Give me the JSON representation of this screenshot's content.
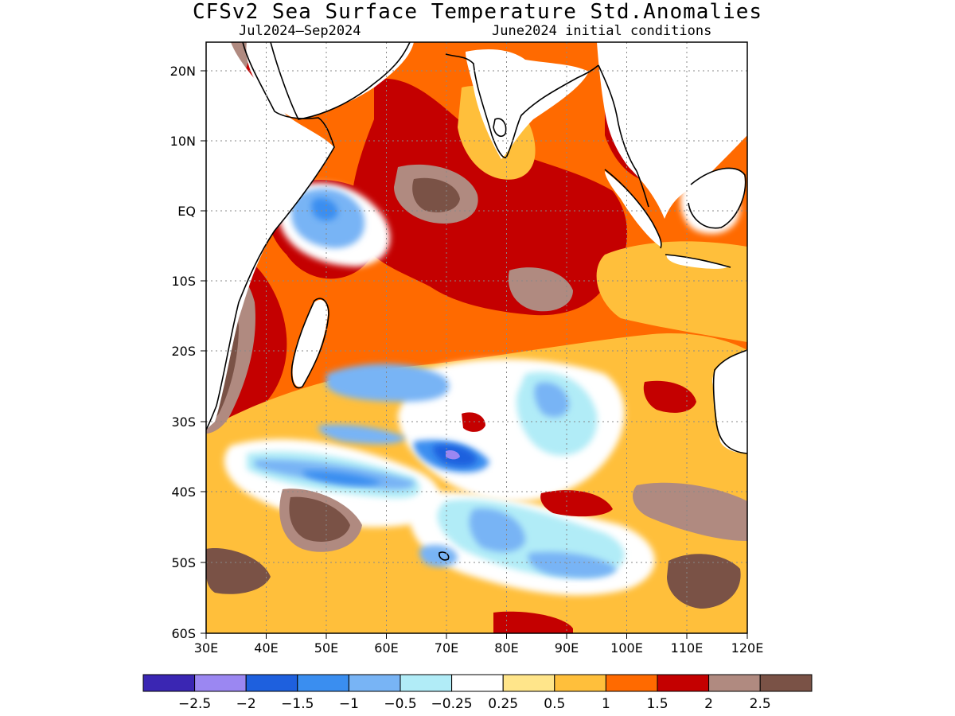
{
  "title": "CFSv2 Sea Surface Temperature Std.Anomalies",
  "subtitle_left": "Jul2024—Sep2024",
  "subtitle_right": "June2024 initial conditions",
  "axes": {
    "x_ticks": [
      "30E",
      "40E",
      "50E",
      "60E",
      "70E",
      "80E",
      "90E",
      "100E",
      "110E",
      "120E"
    ],
    "y_ticks": [
      "20N",
      "10N",
      "EQ",
      "10S",
      "20S",
      "30S",
      "40S",
      "50S",
      "60S"
    ]
  },
  "colorbar": {
    "labels": [
      "−2.5",
      "−2",
      "−1.5",
      "−1",
      "−0.5",
      "−0.25",
      "0.25",
      "0.5",
      "1",
      "1.5",
      "2",
      "2.5"
    ],
    "colors": [
      "#3a26b3",
      "#9b87f2",
      "#1e60de",
      "#3a8ef0",
      "#78b4f5",
      "#b1ecf7",
      "#ffffff",
      "#ffe58a",
      "#ffbf3b",
      "#ff6a00",
      "#c40000",
      "#b08a80",
      "#7a5246"
    ]
  },
  "palette": {
    "base": "#ff6a00",
    "dark_red": "#c40000",
    "brown_light": "#b08a80",
    "brown_dark": "#7a5246",
    "light_orange": "#ffbf3b",
    "pale_yellow": "#ffe58a",
    "white": "#ffffff",
    "cyan": "#b1ecf7",
    "light_blue": "#78b4f5",
    "mid_blue": "#3a8ef0",
    "blue": "#1e60de",
    "lavender": "#9b87f2"
  }
}
